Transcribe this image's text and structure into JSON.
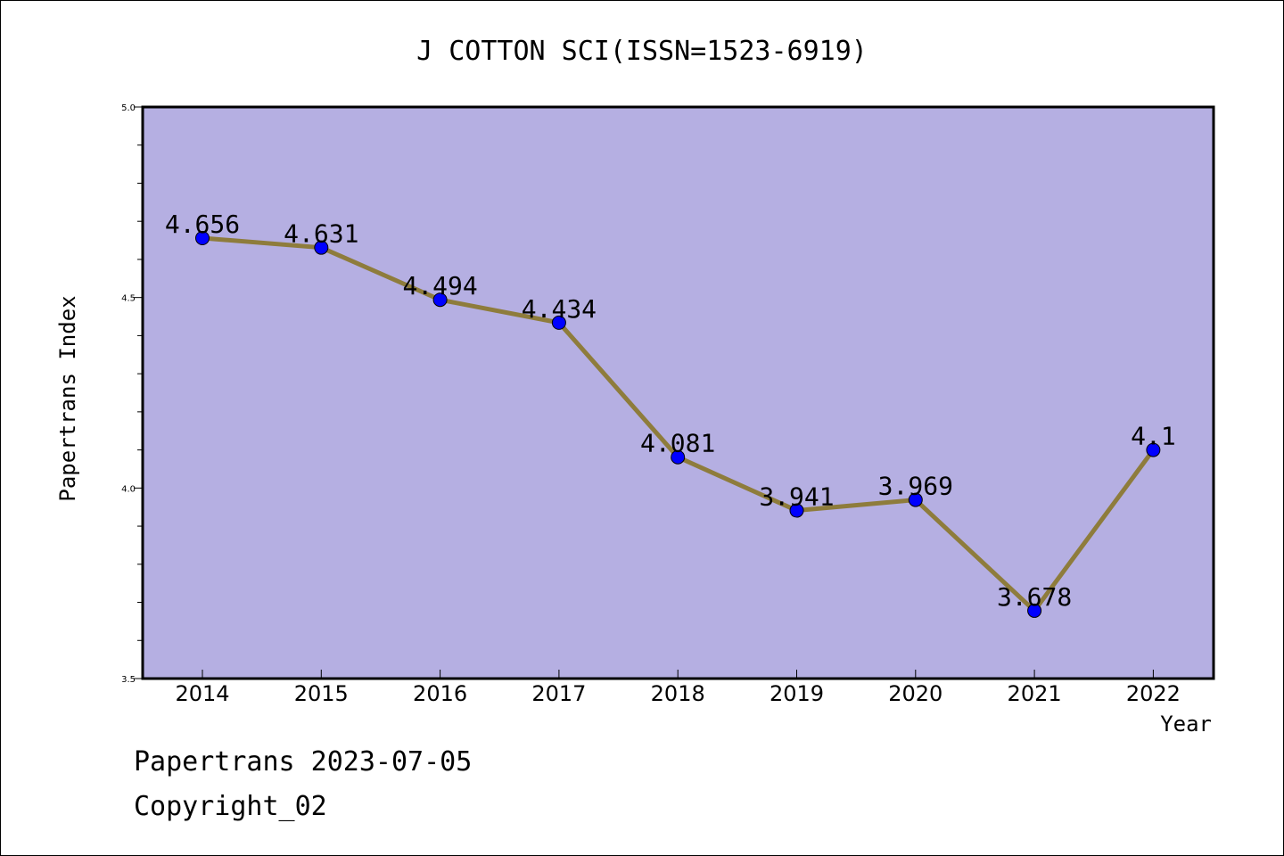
{
  "chart_data": {
    "type": "line",
    "title": "J COTTON SCI(ISSN=1523-6919)",
    "xlabel": "Year",
    "ylabel": "Papertrans Index",
    "categories": [
      "2014",
      "2015",
      "2016",
      "2017",
      "2018",
      "2019",
      "2020",
      "2021",
      "2022"
    ],
    "series": [
      {
        "values": [
          4.656,
          4.631,
          4.494,
          4.434,
          4.081,
          3.941,
          3.969,
          3.678,
          4.1
        ],
        "labels": [
          "4.656",
          "4.631",
          "4.494",
          "4.434",
          "4.081",
          "3.941",
          "3.969",
          "3.678",
          "4.1"
        ]
      }
    ],
    "ylim": [
      3.5,
      5.0
    ],
    "yticks": [
      3.5,
      4.0,
      4.5,
      5.0
    ],
    "ytick_labels": [
      "3.5",
      "4.0",
      "4.5",
      "5.0"
    ],
    "grid": false,
    "legend": "none",
    "colors": {
      "plot_background": "#b5afe2",
      "line": "#8e7c3c",
      "marker": "#0000ff"
    }
  },
  "footer": {
    "line1": "Papertrans 2023-07-05",
    "line2": "Copyright_02"
  }
}
